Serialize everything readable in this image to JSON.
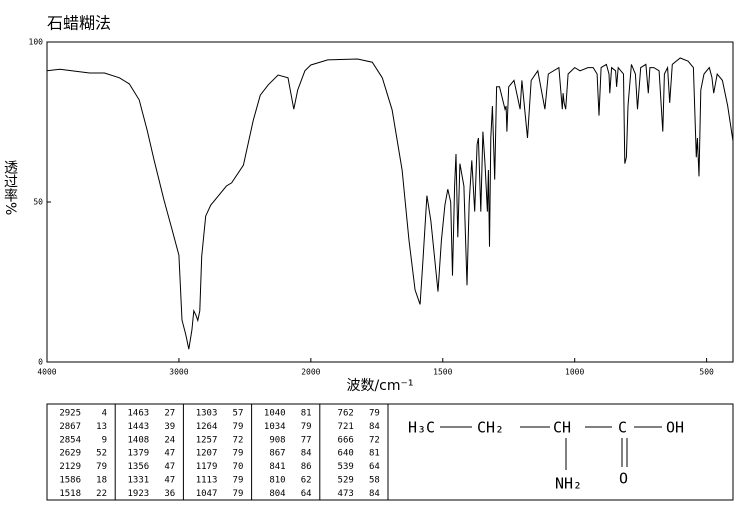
{
  "chart_data": {
    "type": "line",
    "title": "石蜡糊法",
    "xlabel": "波数/cm⁻¹",
    "ylabel": "透过率%",
    "xlim": [
      4000,
      400
    ],
    "ylim": [
      0,
      100
    ],
    "xticks": [
      4000,
      3000,
      2000,
      1500,
      1000,
      500
    ],
    "yticks": [
      0,
      50,
      100
    ],
    "xscale": {
      "break": 2000,
      "factor": 2
    },
    "series": [
      {
        "color": "#000000",
        "x": [
          4000,
          3902,
          3677,
          3564,
          3451,
          3376,
          3301,
          3241,
          3188,
          3113,
          3052,
          3000,
          2977,
          2947,
          2925,
          2902,
          2887,
          2872,
          2857,
          2842,
          2827,
          2797,
          2759,
          2699,
          2640,
          2600,
          2511,
          2436,
          2383,
          2323,
          2248,
          2173,
          2129,
          2100,
          2045,
          2000,
          1936,
          1823,
          1767,
          1729,
          1692,
          1654,
          1628,
          1605,
          1586,
          1575,
          1560,
          1545,
          1518,
          1505,
          1492,
          1481,
          1470,
          1463,
          1455,
          1450,
          1443,
          1435,
          1420,
          1408,
          1400,
          1390,
          1379,
          1370,
          1365,
          1356,
          1348,
          1340,
          1331,
          1327,
          1323,
          1318,
          1312,
          1303,
          1296,
          1285,
          1264,
          1260,
          1257,
          1250,
          1230,
          1207,
          1200,
          1179,
          1165,
          1140,
          1113,
          1100,
          1060,
          1047,
          1044,
          1040,
          1034,
          1025,
          1000,
          980,
          950,
          930,
          915,
          908,
          900,
          880,
          870,
          867,
          860,
          845,
          841,
          835,
          815,
          810,
          804,
          798,
          785,
          770,
          762,
          750,
          730,
          721,
          715,
          700,
          680,
          666,
          660,
          648,
          640,
          630,
          600,
          570,
          550,
          539,
          535,
          529,
          522,
          510,
          490,
          480,
          473,
          460,
          440,
          420,
          400
        ],
        "values": [
          91,
          91.5,
          90.3,
          90.3,
          88.8,
          86.9,
          81.9,
          72.5,
          63.1,
          50.6,
          41.3,
          33.4,
          13.1,
          8.4,
          4,
          10,
          16,
          14.7,
          13,
          16,
          33,
          45.6,
          49,
          52,
          55,
          56,
          61.5,
          75.6,
          83.4,
          86.6,
          89.7,
          88.8,
          79,
          85,
          91,
          92.8,
          94.4,
          94.7,
          93.7,
          88.8,
          78.8,
          60,
          38,
          22.5,
          18,
          32,
          52,
          44,
          22,
          38,
          49,
          54,
          50,
          27,
          55,
          65,
          39,
          62,
          55,
          24,
          50,
          63,
          47,
          68,
          70,
          47,
          72,
          62,
          47,
          60,
          36,
          70,
          80,
          57,
          86,
          86,
          79,
          80,
          72,
          86,
          88,
          79,
          88,
          70,
          88,
          91,
          79,
          90,
          92,
          79,
          84,
          81,
          79,
          90,
          92,
          91,
          92,
          92,
          90,
          77,
          92,
          93,
          90,
          84,
          92,
          91,
          86,
          92,
          90,
          62,
          64,
          80,
          93,
          90,
          79,
          92,
          93,
          84,
          92,
          92,
          91,
          72,
          90,
          92,
          81,
          93,
          95,
          94,
          92,
          64,
          70,
          58,
          85,
          90,
          92,
          89,
          84,
          90,
          88,
          80,
          69
        ]
      }
    ]
  },
  "peak_table": [
    [
      [
        "2925",
        "4"
      ],
      [
        "2867",
        "13"
      ],
      [
        "2854",
        "9"
      ],
      [
        "2629",
        "52"
      ],
      [
        "2129",
        "79"
      ],
      [
        "1586",
        "18"
      ],
      [
        "1518",
        "22"
      ]
    ],
    [
      [
        "1463",
        "27"
      ],
      [
        "1443",
        "39"
      ],
      [
        "1408",
        "24"
      ],
      [
        "1379",
        "47"
      ],
      [
        "1356",
        "47"
      ],
      [
        "1331",
        "47"
      ],
      [
        "1923",
        "36"
      ]
    ],
    [
      [
        "1303",
        "57"
      ],
      [
        "1264",
        "79"
      ],
      [
        "1257",
        "72"
      ],
      [
        "1207",
        "79"
      ],
      [
        "1179",
        "70"
      ],
      [
        "1113",
        "79"
      ],
      [
        "1047",
        "79"
      ]
    ],
    [
      [
        "1040",
        "81"
      ],
      [
        "1034",
        "79"
      ],
      [
        "908",
        "77"
      ],
      [
        "867",
        "84"
      ],
      [
        "841",
        "86"
      ],
      [
        "810",
        "62"
      ],
      [
        "804",
        "64"
      ]
    ],
    [
      [
        "762",
        "79"
      ],
      [
        "721",
        "84"
      ],
      [
        "666",
        "72"
      ],
      [
        "640",
        "81"
      ],
      [
        "539",
        "64"
      ],
      [
        "529",
        "58"
      ],
      [
        "473",
        "84"
      ]
    ]
  ],
  "structure": {
    "labels": [
      "H₃C",
      "CH₂",
      "CH",
      "C",
      "OH",
      "NH₂",
      "O"
    ]
  }
}
